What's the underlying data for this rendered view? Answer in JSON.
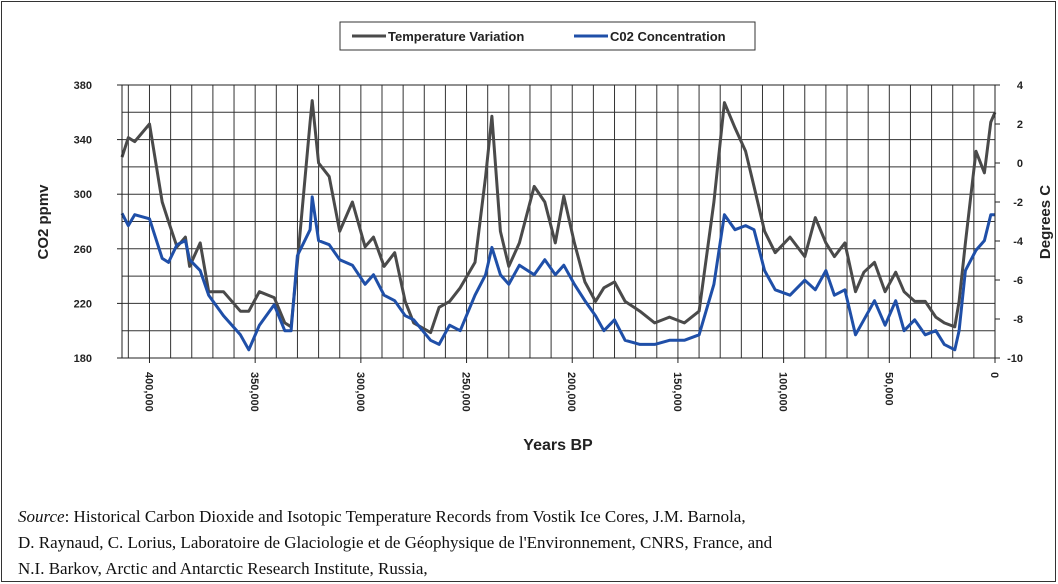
{
  "chart_data": {
    "type": "line",
    "x_label": "Years BP",
    "y_label": "CO2 ppmv",
    "y2_label": "Degrees C",
    "x": [
      413000,
      410000,
      407000,
      400000,
      394000,
      391000,
      387000,
      383000,
      381000,
      376000,
      372000,
      365000,
      357000,
      353000,
      348000,
      341000,
      336000,
      333000,
      330000,
      324000,
      323000,
      320000,
      315000,
      310000,
      304000,
      298000,
      294000,
      289000,
      284000,
      279000,
      275000,
      267000,
      263000,
      258000,
      253000,
      246000,
      241000,
      238000,
      234000,
      230000,
      225000,
      218000,
      213000,
      208000,
      204000,
      199000,
      194000,
      189000,
      185000,
      180000,
      175000,
      168000,
      161000,
      154000,
      147000,
      140000,
      133000,
      128000,
      123000,
      118000,
      114000,
      109000,
      104000,
      97000,
      90000,
      85000,
      80000,
      76000,
      71000,
      66000,
      62000,
      57000,
      52000,
      47000,
      43000,
      38000,
      33000,
      28000,
      24000,
      19000,
      17000,
      14000,
      9000,
      5000,
      2000,
      0
    ],
    "series": [
      {
        "name": "Temperature Variation",
        "color": "#4a4a4a",
        "axis": "y2",
        "values": [
          0.3,
          1.3,
          1.1,
          2.0,
          -2.0,
          -3.0,
          -4.3,
          -3.8,
          -5.3,
          -4.1,
          -6.6,
          -6.6,
          -7.6,
          -7.6,
          -6.6,
          -6.9,
          -8.2,
          -8.4,
          -5.1,
          2.1,
          3.2,
          0,
          -0.7,
          -3.5,
          -2.0,
          -4.3,
          -3.8,
          -5.3,
          -4.6,
          -7.1,
          -8.2,
          -8.7,
          -7.4,
          -7.1,
          -6.4,
          -5.1,
          -0.7,
          2.4,
          -3.5,
          -5.3,
          -4.1,
          -1.2,
          -2.0,
          -4.1,
          -1.7,
          -4.1,
          -6.1,
          -7.1,
          -6.4,
          -6.1,
          -7.1,
          -7.6,
          -8.2,
          -7.9,
          -8.2,
          -7.6,
          -2.0,
          3.1,
          1.8,
          0.6,
          -1.2,
          -3.5,
          -4.6,
          -3.8,
          -4.8,
          -2.8,
          -4.1,
          -4.8,
          -4.1,
          -6.6,
          -5.6,
          -5.1,
          -6.6,
          -5.6,
          -6.6,
          -7.1,
          -7.1,
          -7.9,
          -8.2,
          -8.4,
          -7.1,
          -4.1,
          0.6,
          -0.5,
          2.1,
          2.6
        ]
      },
      {
        "name": "C02 Concentration",
        "color": "#1f4fa8",
        "values": [
          286,
          277,
          285,
          282,
          253,
          250,
          263,
          266,
          252,
          244,
          226,
          211,
          197,
          186,
          204,
          219,
          200,
          200,
          255,
          274,
          298,
          266,
          263,
          252,
          248,
          234,
          241,
          226,
          222,
          211,
          208,
          193,
          190,
          204,
          200,
          226,
          241,
          261,
          241,
          234,
          248,
          241,
          252,
          241,
          248,
          234,
          222,
          211,
          200,
          208,
          193,
          190,
          190,
          193,
          193,
          197,
          234,
          285,
          274,
          277,
          274,
          244,
          230,
          226,
          237,
          230,
          244,
          226,
          230,
          197,
          208,
          222,
          204,
          222,
          200,
          208,
          197,
          200,
          190,
          186,
          200,
          244,
          259,
          266,
          285,
          285
        ]
      }
    ],
    "xlim": [
      413000,
      0
    ],
    "xticks": [
      {
        "value": 400000,
        "label": "400,000"
      },
      {
        "value": 350000,
        "label": "350,000"
      },
      {
        "value": 300000,
        "label": "300,000"
      },
      {
        "value": 250000,
        "label": "250,000"
      },
      {
        "value": 200000,
        "label": "200,000"
      },
      {
        "value": 150000,
        "label": "150,000"
      },
      {
        "value": 100000,
        "label": "100,000"
      },
      {
        "value": 50000,
        "label": "50,000"
      },
      0
    ],
    "ylim": [
      180,
      380
    ],
    "yticks": [
      180,
      220,
      260,
      300,
      340,
      380
    ],
    "y2lim": [
      -10,
      4
    ],
    "y2ticks": [
      4,
      2,
      0,
      -2,
      -4,
      -6,
      -8,
      -10
    ],
    "xgrid": [
      410000,
      400000,
      390000,
      380000,
      370000,
      360000,
      350000,
      340000,
      330000,
      320000,
      310000,
      300000,
      290000,
      280000,
      270000,
      260000,
      250000,
      240000,
      230000,
      220000,
      210000,
      200000,
      190000,
      180000,
      170000,
      160000,
      150000,
      140000,
      130000,
      120000,
      110000,
      100000,
      90000,
      80000,
      70000,
      60000,
      50000,
      40000,
      30000,
      20000,
      10000
    ],
    "ygrid": [
      200,
      220,
      240,
      260,
      280,
      300,
      320,
      340,
      360
    ],
    "grid": true,
    "legend": "top"
  },
  "source": {
    "label": "Source",
    "lines": [
      ": Historical Carbon Dioxide and Isotopic Temperature Records from Vostik Ice Cores, J.M. Barnola,",
      "D. Raynaud, C. Lorius, Laboratoire de Glaciologie et de Géophysique de l'Environnement, CNRS, France, and",
      "N.I. Barkov, Arctic and Antarctic Research Institute, Russia,"
    ]
  }
}
